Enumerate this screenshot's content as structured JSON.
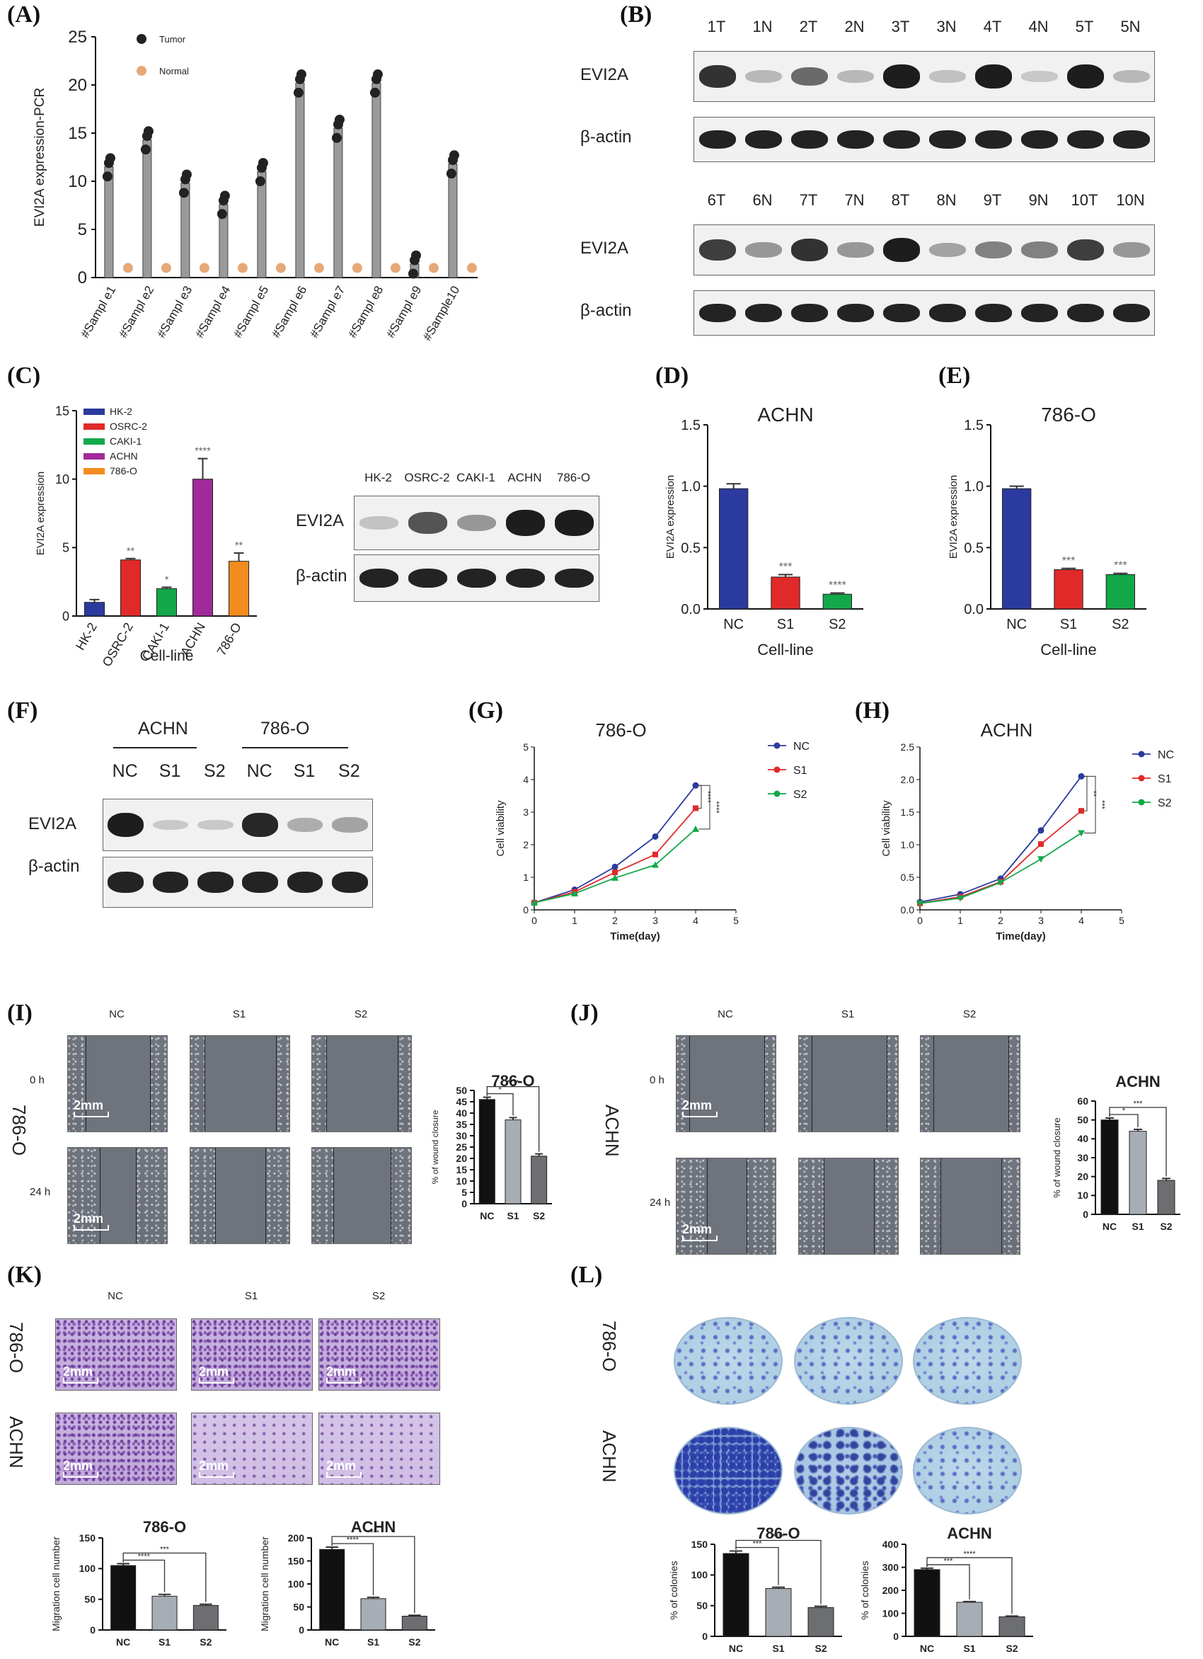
{
  "panels": {
    "A": {
      "label": "(A)"
    },
    "B": {
      "label": "(B)"
    },
    "C": {
      "label": "(C)"
    },
    "D": {
      "label": "(D)"
    },
    "E": {
      "label": "(E)"
    },
    "F": {
      "label": "(F)"
    },
    "G": {
      "label": "(G)"
    },
    "H": {
      "label": "(H)"
    },
    "I": {
      "label": "(I)"
    },
    "J": {
      "label": "(J)"
    },
    "K": {
      "label": "(K)"
    },
    "L": {
      "label": "(L)"
    }
  },
  "chart_data": [
    {
      "id": "A",
      "type": "bar",
      "ylabel": "EVI2A expression-PCR",
      "ylim": [
        0,
        25
      ],
      "yticks": [
        0,
        5,
        10,
        15,
        20,
        25
      ],
      "categories": [
        "#Sampl e1",
        "#Sampl e2",
        "#Sampl e3",
        "#Sampl e4",
        "#Sampl e5",
        "#Sampl e6",
        "#Sampl e7",
        "#Sampl e8",
        "#Sampl e9",
        "#Sample10"
      ],
      "series": [
        {
          "name": "Tumor",
          "color": "#222222",
          "values": [
            11.5,
            14.3,
            9.8,
            7.6,
            11.0,
            20.2,
            15.5,
            20.2,
            1.4,
            11.8
          ]
        },
        {
          "name": "Normal",
          "color": "#e7a877",
          "values": [
            1.0,
            1.0,
            1.0,
            1.0,
            1.0,
            1.0,
            1.0,
            1.0,
            1.0,
            1.0
          ]
        }
      ],
      "legend": "top-left"
    },
    {
      "id": "C",
      "type": "bar",
      "ylabel": "EVI2A expression",
      "xlabel": "Cell-line",
      "ylim": [
        0,
        15
      ],
      "yticks": [
        0,
        5,
        10,
        15
      ],
      "categories": [
        "HK-2",
        "OSRC-2",
        "CAKI-1",
        "ACHN",
        "786-O"
      ],
      "values": [
        1.0,
        4.1,
        2.0,
        10.0,
        4.0
      ],
      "errors": [
        0.2,
        0.1,
        0.1,
        1.5,
        0.6
      ],
      "colors": [
        "#2b3a9e",
        "#e02a2a",
        "#13a84a",
        "#a02a9a",
        "#f28c1e"
      ],
      "sig": [
        "",
        "**",
        "*",
        "****",
        "**"
      ],
      "legend_entries": [
        "HK-2",
        "OSRC-2",
        "CAKI-1",
        "ACHN",
        "786-O"
      ]
    },
    {
      "id": "D",
      "type": "bar",
      "title": "ACHN",
      "ylabel": "EVI2A expression",
      "xlabel": "Cell-line",
      "ylim": [
        0,
        1.5
      ],
      "yticks": [
        "0.0",
        "0.5",
        "1.0",
        "1.5"
      ],
      "categories": [
        "NC",
        "S1",
        "S2"
      ],
      "values": [
        0.98,
        0.26,
        0.12
      ],
      "errors": [
        0.04,
        0.02,
        0.01
      ],
      "colors": [
        "#2b3a9e",
        "#e02a2a",
        "#13a84a"
      ],
      "sig": [
        "",
        "***",
        "****"
      ]
    },
    {
      "id": "E",
      "type": "bar",
      "title": "786-O",
      "ylabel": "EVI2A expression",
      "xlabel": "Cell-line",
      "ylim": [
        0,
        1.5
      ],
      "yticks": [
        "0.0",
        "0.5",
        "1.0",
        "1.5"
      ],
      "categories": [
        "NC",
        "S1",
        "S2"
      ],
      "values": [
        0.98,
        0.32,
        0.28
      ],
      "errors": [
        0.02,
        0.01,
        0.01
      ],
      "colors": [
        "#2b3a9e",
        "#e02a2a",
        "#13a84a"
      ],
      "sig": [
        "",
        "***",
        "***"
      ]
    },
    {
      "id": "G",
      "type": "line",
      "title": "786-O",
      "xlabel": "Time(day)",
      "ylabel": "Cell viability",
      "xlim": [
        0,
        5
      ],
      "ylim": [
        0,
        5
      ],
      "xticks": [
        0,
        1,
        2,
        3,
        4,
        5
      ],
      "yticks": [
        0,
        1,
        2,
        3,
        4,
        5
      ],
      "x": [
        0,
        1,
        2,
        3,
        4
      ],
      "series": [
        {
          "name": "NC",
          "color": "#2b3a9e",
          "marker": "circle",
          "values": [
            0.22,
            0.62,
            1.32,
            2.25,
            3.82
          ]
        },
        {
          "name": "S1",
          "color": "#e02a2a",
          "marker": "square",
          "values": [
            0.22,
            0.55,
            1.15,
            1.7,
            3.12
          ]
        },
        {
          "name": "S2",
          "color": "#13a84a",
          "marker": "triangle",
          "values": [
            0.22,
            0.5,
            0.98,
            1.38,
            2.48
          ]
        }
      ],
      "sig": [
        "****",
        "****"
      ]
    },
    {
      "id": "H",
      "type": "line",
      "title": "ACHN",
      "xlabel": "Time(day)",
      "ylabel": "Cell viability",
      "xlim": [
        0,
        5
      ],
      "ylim": [
        0,
        2.5
      ],
      "xticks": [
        0,
        1,
        2,
        3,
        4,
        5
      ],
      "yticks": [
        "0.0",
        "0.5",
        "1.0",
        "1.5",
        "2.0",
        "2.5"
      ],
      "x": [
        0,
        1,
        2,
        3,
        4
      ],
      "series": [
        {
          "name": "NC",
          "color": "#2b3a9e",
          "marker": "circle",
          "values": [
            0.12,
            0.24,
            0.48,
            1.22,
            2.05
          ]
        },
        {
          "name": "S1",
          "color": "#e02a2a",
          "marker": "square",
          "values": [
            0.1,
            0.2,
            0.43,
            1.01,
            1.52
          ]
        },
        {
          "name": "S2",
          "color": "#13a84a",
          "marker": "triangle-down",
          "values": [
            0.1,
            0.18,
            0.42,
            0.78,
            1.18
          ]
        }
      ],
      "sig": [
        "**",
        "***"
      ]
    },
    {
      "id": "I-bar",
      "type": "bar",
      "title": "786-O",
      "ylabel": "% of wound closure",
      "ylim": [
        0,
        50
      ],
      "yticks": [
        0,
        5,
        10,
        15,
        20,
        25,
        30,
        35,
        40,
        45,
        50
      ],
      "categories": [
        "NC",
        "S1",
        "S2"
      ],
      "values": [
        46,
        37,
        21
      ],
      "errors": [
        1,
        1,
        1
      ],
      "colors": [
        "#111111",
        "#a7adb5",
        "#6d6e72"
      ],
      "sig": [
        "*",
        "****"
      ]
    },
    {
      "id": "J-bar",
      "type": "bar",
      "title": "ACHN",
      "ylabel": "% of wound closure",
      "ylim": [
        0,
        60
      ],
      "yticks": [
        0,
        10,
        20,
        30,
        40,
        50,
        60
      ],
      "categories": [
        "NC",
        "S1",
        "S2"
      ],
      "values": [
        50,
        44,
        18
      ],
      "errors": [
        1,
        1,
        1
      ],
      "colors": [
        "#111111",
        "#a7adb5",
        "#6d6e72"
      ],
      "sig": [
        "*",
        "***"
      ]
    },
    {
      "id": "K-786",
      "type": "bar",
      "title": "786-O",
      "ylabel": "Migration cell number",
      "ylim": [
        0,
        150
      ],
      "yticks": [
        0,
        50,
        100,
        150
      ],
      "categories": [
        "NC",
        "S1",
        "S2"
      ],
      "values": [
        105,
        55,
        40
      ],
      "errors": [
        3,
        3,
        2
      ],
      "colors": [
        "#111111",
        "#a7adb5",
        "#6d6e72"
      ],
      "sig": [
        "****",
        "***"
      ]
    },
    {
      "id": "K-ACHN",
      "type": "bar",
      "title": "ACHN",
      "ylabel": "Migration cell number",
      "ylim": [
        0,
        200
      ],
      "yticks": [
        0,
        50,
        100,
        150,
        200
      ],
      "categories": [
        "NC",
        "S1",
        "S2"
      ],
      "values": [
        175,
        68,
        30
      ],
      "errors": [
        5,
        3,
        2
      ],
      "colors": [
        "#111111",
        "#a7adb5",
        "#6d6e72"
      ],
      "sig": [
        "****",
        "****"
      ]
    },
    {
      "id": "L-786",
      "type": "bar",
      "title": "786-O",
      "ylabel": "% of colonies",
      "ylim": [
        0,
        150
      ],
      "yticks": [
        0,
        50,
        100,
        150
      ],
      "categories": [
        "NC",
        "S1",
        "S2"
      ],
      "values": [
        135,
        78,
        47
      ],
      "errors": [
        4,
        2,
        2
      ],
      "colors": [
        "#111111",
        "#a7adb5",
        "#6d6e72"
      ],
      "sig": [
        "***",
        "****"
      ]
    },
    {
      "id": "L-ACHN",
      "type": "bar",
      "title": "ACHN",
      "ylabel": "% of colonies",
      "ylim": [
        0,
        400
      ],
      "yticks": [
        0,
        100,
        200,
        300,
        400
      ],
      "categories": [
        "NC",
        "S1",
        "S2"
      ],
      "values": [
        290,
        148,
        85
      ],
      "errors": [
        6,
        3,
        3
      ],
      "colors": [
        "#111111",
        "#a7adb5",
        "#6d6e72"
      ],
      "sig": [
        "***",
        "****"
      ]
    }
  ],
  "blots": {
    "B": {
      "top_lanes": [
        "1T",
        "1N",
        "2T",
        "2N",
        "3T",
        "3N",
        "4T",
        "4N",
        "5T",
        "5N"
      ],
      "bottom_lanes": [
        "6T",
        "6N",
        "7T",
        "7N",
        "8T",
        "8N",
        "9T",
        "9N",
        "10T",
        "10N"
      ],
      "top_evi": [
        0.85,
        0.25,
        0.6,
        0.25,
        0.95,
        0.22,
        0.95,
        0.12,
        0.95,
        0.25
      ],
      "bottom_evi": [
        0.8,
        0.4,
        0.85,
        0.4,
        0.95,
        0.35,
        0.5,
        0.5,
        0.8,
        0.4
      ],
      "row1": "EVI2A",
      "row2": "β-actin"
    },
    "C": {
      "lanes": [
        "HK-2",
        "OSRC-2",
        "CAKI-1",
        "ACHN",
        "786-O"
      ],
      "evi": [
        0.2,
        0.7,
        0.4,
        0.95,
        0.95
      ],
      "row1": "EVI2A",
      "row2": "β-actin"
    },
    "F": {
      "group1": "ACHN",
      "group2": "786-O",
      "lanes": [
        "NC",
        "S1",
        "S2",
        "NC",
        "S1",
        "S2"
      ],
      "evi": [
        0.95,
        0.08,
        0.05,
        0.9,
        0.3,
        0.35
      ],
      "row1": "EVI2A",
      "row2": "β-actin"
    }
  },
  "micrographs": {
    "I": {
      "cols": [
        "NC",
        "S1",
        "S2"
      ],
      "rows": [
        "0 h",
        "24 h"
      ],
      "cell": "786-O",
      "scale": "2mm"
    },
    "J": {
      "cols": [
        "NC",
        "S1",
        "S2"
      ],
      "rows": [
        "0 h",
        "24 h"
      ],
      "cell": "ACHN",
      "scale": "2mm"
    },
    "K": {
      "cols": [
        "NC",
        "S1",
        "S2"
      ],
      "rows": [
        "786-O",
        "ACHN"
      ],
      "scale": "2mm"
    },
    "L": {
      "rows": [
        "786-O",
        "ACHN"
      ]
    }
  }
}
